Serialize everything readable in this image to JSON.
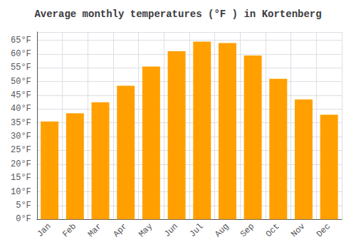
{
  "chart_data": {
    "type": "bar",
    "title": "Average monthly temperatures (°F ) in Kortenberg",
    "categories": [
      "Jan",
      "Feb",
      "Mar",
      "Apr",
      "May",
      "Jun",
      "Jul",
      "Aug",
      "Sep",
      "Oct",
      "Nov",
      "Dec"
    ],
    "values": [
      35.5,
      38.5,
      42.5,
      48.5,
      55.5,
      61.0,
      64.5,
      64.0,
      59.5,
      51.0,
      43.5,
      38.0
    ],
    "color": "#FFA000",
    "ylim": [
      0,
      68
    ],
    "yticks": [
      {
        "value": 0,
        "label": "0°F"
      },
      {
        "value": 5,
        "label": "5°F"
      },
      {
        "value": 10,
        "label": "10°F"
      },
      {
        "value": 15,
        "label": "15°F"
      },
      {
        "value": 20,
        "label": "20°F"
      },
      {
        "value": 25,
        "label": "25°F"
      },
      {
        "value": 30,
        "label": "30°F"
      },
      {
        "value": 35,
        "label": "35°F"
      },
      {
        "value": 40,
        "label": "40°F"
      },
      {
        "value": 45,
        "label": "45°F"
      },
      {
        "value": 50,
        "label": "50°F"
      },
      {
        "value": 55,
        "label": "55°F"
      },
      {
        "value": 60,
        "label": "60°F"
      },
      {
        "value": 65,
        "label": "65°F"
      }
    ],
    "grid": true
  }
}
